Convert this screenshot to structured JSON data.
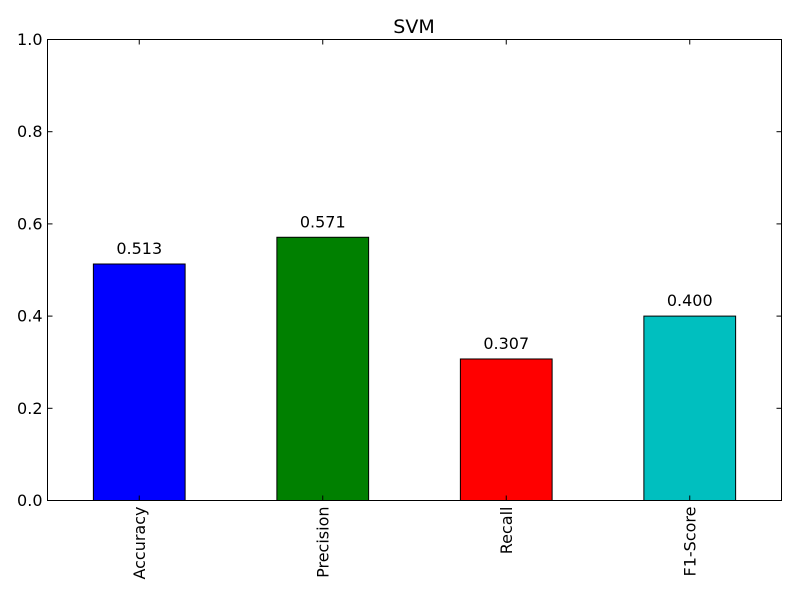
{
  "chart_data": {
    "type": "bar",
    "title": "SVM",
    "xlabel": "",
    "ylabel": "",
    "categories": [
      "Accuracy",
      "Precision",
      "Recall",
      "F1-Score"
    ],
    "values": [
      0.513,
      0.571,
      0.307,
      0.4
    ],
    "value_labels": [
      "0.513",
      "0.571",
      "0.307",
      "0.400"
    ],
    "colors": [
      "#0000ff",
      "#008000",
      "#ff0000",
      "#00bfbf"
    ],
    "ylim": [
      0,
      1.0
    ],
    "yticks": [
      "0.0",
      "0.2",
      "0.4",
      "0.6",
      "0.8",
      "1.0"
    ],
    "grid": false,
    "legend": "none"
  }
}
